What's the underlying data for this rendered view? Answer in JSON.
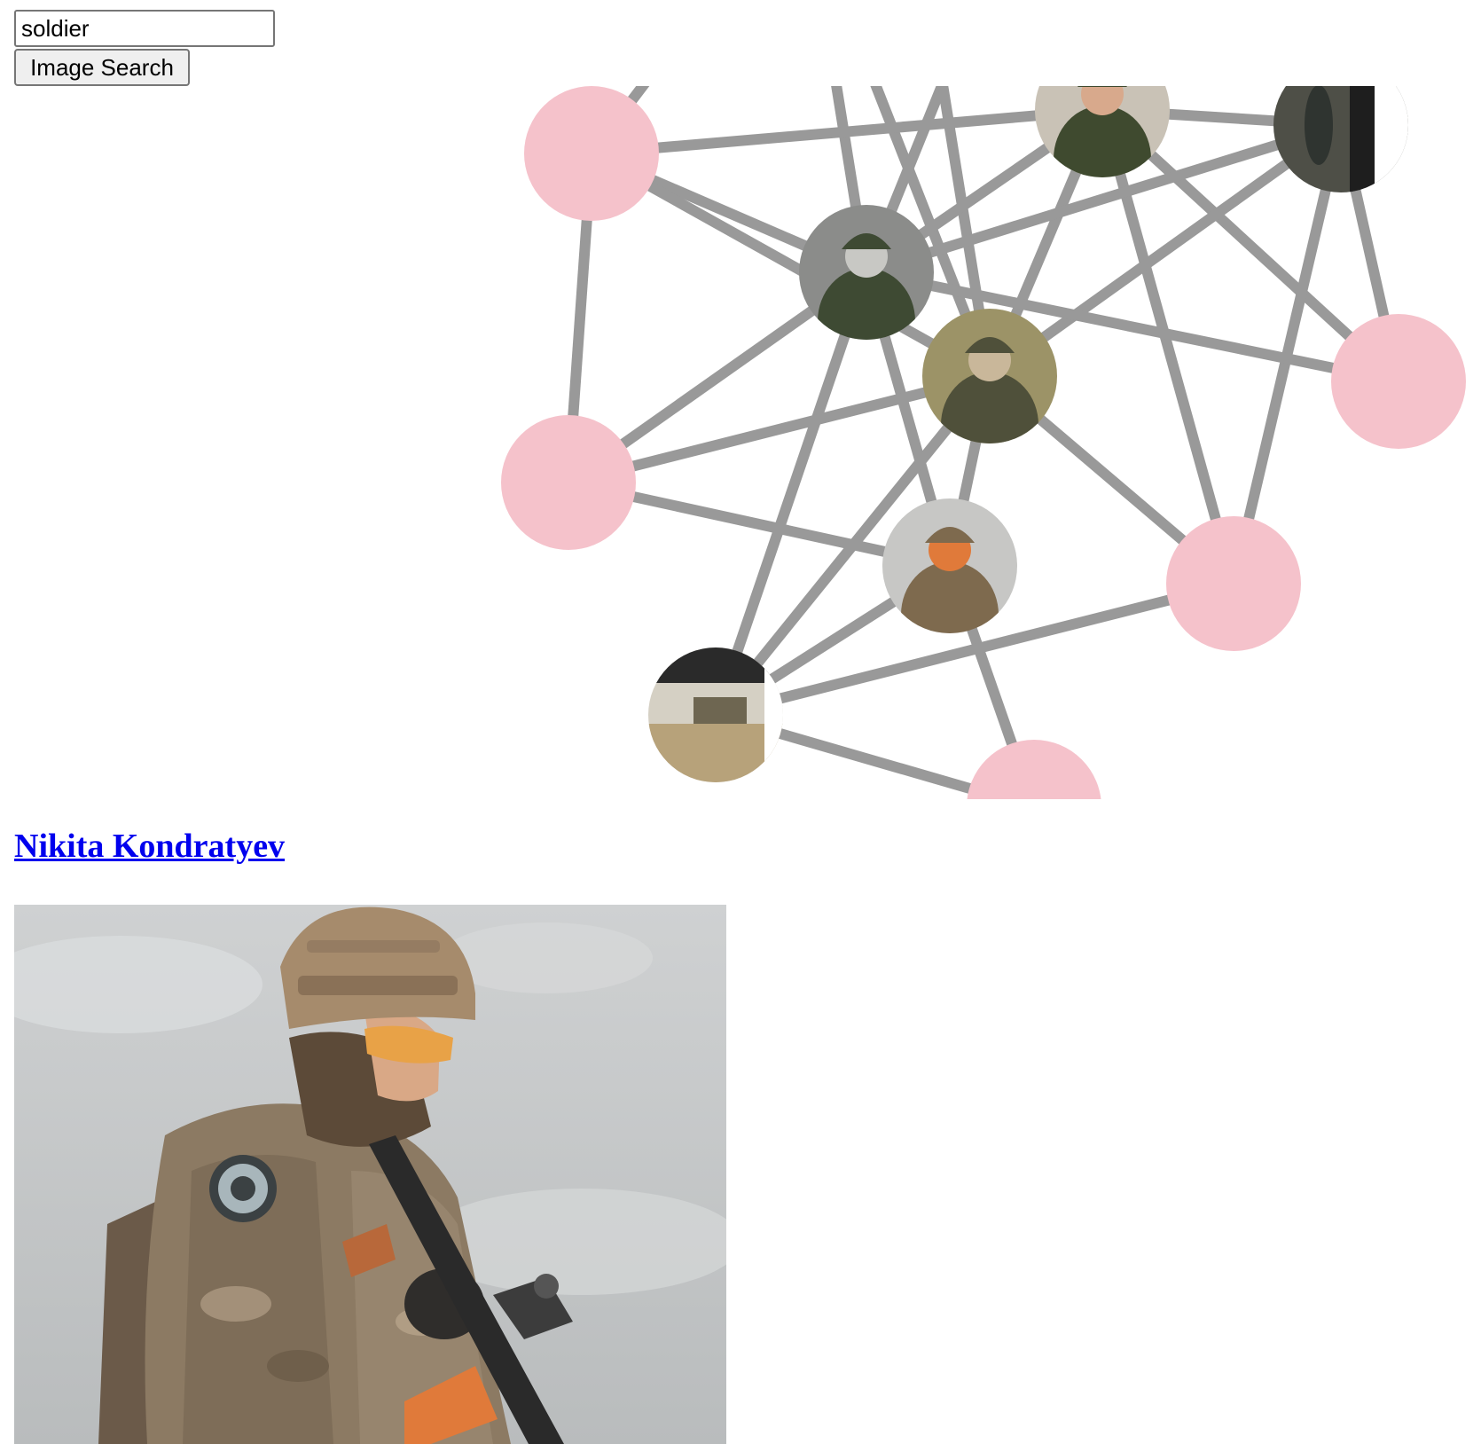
{
  "search": {
    "value": "soldier",
    "button_label": "Image Search"
  },
  "graph": {
    "edge_color": "#999999",
    "placeholder_node_color": "#f5c2cb",
    "nodes": [
      {
        "id": "n1",
        "kind": "placeholder"
      },
      {
        "id": "n2",
        "kind": "photo",
        "icon": "soldier-vest-photo"
      },
      {
        "id": "n3",
        "kind": "photo",
        "icon": "soldier-field-screenshot-photo"
      },
      {
        "id": "n4",
        "kind": "photo",
        "icon": "soldier-gas-mask-photo"
      },
      {
        "id": "n5",
        "kind": "photo",
        "icon": "soldier-helmet-goggles-photo"
      },
      {
        "id": "n6",
        "kind": "placeholder"
      },
      {
        "id": "n7",
        "kind": "placeholder"
      },
      {
        "id": "n8",
        "kind": "photo",
        "icon": "soldier-rifle-photo"
      },
      {
        "id": "n9",
        "kind": "placeholder"
      },
      {
        "id": "n10",
        "kind": "photo",
        "icon": "military-tent-vehicle-photo"
      },
      {
        "id": "n11",
        "kind": "placeholder"
      }
    ],
    "edges": [
      [
        "n1",
        "n2"
      ],
      [
        "n1",
        "n4"
      ],
      [
        "n1",
        "n6"
      ],
      [
        "n1",
        "n5"
      ],
      [
        "n2",
        "n3"
      ],
      [
        "n2",
        "n4"
      ],
      [
        "n2",
        "n5"
      ],
      [
        "n2",
        "n9"
      ],
      [
        "n2",
        "n7"
      ],
      [
        "n3",
        "n4"
      ],
      [
        "n3",
        "n5"
      ],
      [
        "n3",
        "n9"
      ],
      [
        "n3",
        "n7"
      ],
      [
        "n4",
        "n6"
      ],
      [
        "n4",
        "n8"
      ],
      [
        "n4",
        "n10"
      ],
      [
        "n4",
        "n7"
      ],
      [
        "n5",
        "n6"
      ],
      [
        "n5",
        "n8"
      ],
      [
        "n5",
        "n10"
      ],
      [
        "n5",
        "n9"
      ],
      [
        "n6",
        "n8"
      ],
      [
        "n8",
        "n10"
      ],
      [
        "n8",
        "n11"
      ],
      [
        "n9",
        "n10"
      ],
      [
        "n10",
        "n11"
      ]
    ]
  },
  "result": {
    "title": "Nikita Kondratyev",
    "image_icon": "soldier-photo"
  }
}
